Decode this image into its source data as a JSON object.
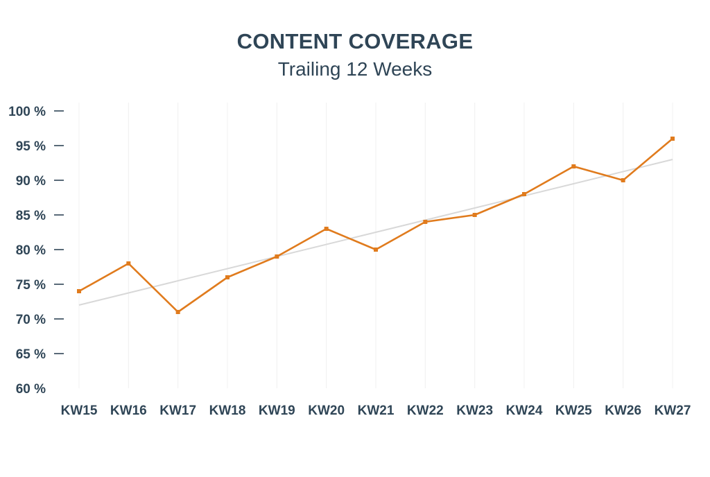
{
  "chart_data": {
    "type": "line",
    "title": "CONTENT COVERAGE",
    "subtitle": "Trailing 12 Weeks",
    "xlabel": "",
    "ylabel": "",
    "categories": [
      "KW15",
      "KW16",
      "KW17",
      "KW18",
      "KW19",
      "KW20",
      "KW21",
      "KW22",
      "KW23",
      "KW24",
      "KW25",
      "KW26",
      "KW27"
    ],
    "series": [
      {
        "values": [
          74,
          78,
          71,
          76,
          79,
          83,
          80,
          84,
          85,
          88,
          92,
          90,
          96
        ],
        "color": "#e07b1d"
      }
    ],
    "trendline": {
      "start": 72,
      "end": 93,
      "color": "#d8d8d8"
    },
    "yticks": [
      {
        "value": 100,
        "label": "100 %"
      },
      {
        "value": 95,
        "label": "95 %"
      },
      {
        "value": 90,
        "label": "90 %"
      },
      {
        "value": 85,
        "label": "85 %"
      },
      {
        "value": 80,
        "label": "80 %"
      },
      {
        "value": 75,
        "label": "75 %"
      },
      {
        "value": 70,
        "label": "70 %"
      },
      {
        "value": 65,
        "label": "65 %"
      },
      {
        "value": 60,
        "label": "60 %"
      }
    ],
    "ylim": [
      60,
      100
    ],
    "grid": "vertical",
    "legend": "none",
    "colors": {
      "text": "#2f4556",
      "grid": "#f0f0f0",
      "line": "#e07b1d",
      "trend": "#d8d8d8"
    }
  }
}
